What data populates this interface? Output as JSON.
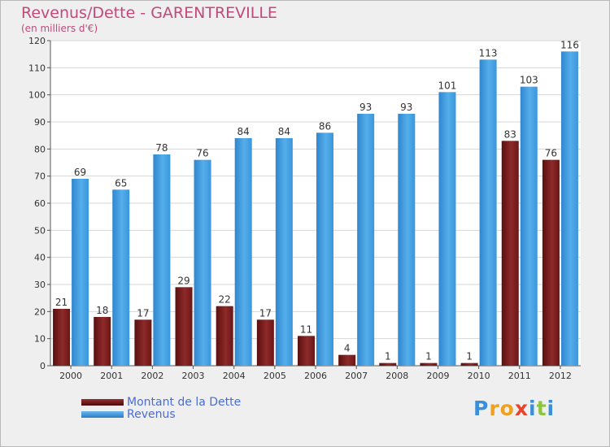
{
  "chart_data": {
    "type": "bar",
    "title": "Revenus/Dette - GARENTREVILLE",
    "subtitle": "(en milliers d'€)",
    "categories": [
      "2000",
      "2001",
      "2002",
      "2003",
      "2004",
      "2005",
      "2006",
      "2007",
      "2008",
      "2009",
      "2010",
      "2011",
      "2012"
    ],
    "series": [
      {
        "name": "Montant de la Dette",
        "color": "#7a1c1c",
        "values": [
          21,
          18,
          17,
          29,
          22,
          17,
          11,
          4,
          1,
          1,
          1,
          83,
          76
        ]
      },
      {
        "name": "Revenus",
        "color": "#3a96dc",
        "values": [
          69,
          65,
          78,
          76,
          84,
          84,
          86,
          93,
          93,
          101,
          113,
          103,
          116
        ]
      }
    ],
    "ylim": [
      0,
      120
    ],
    "yticks": [
      0,
      10,
      20,
      30,
      40,
      50,
      60,
      70,
      80,
      90,
      100,
      110,
      120
    ],
    "grid": true,
    "legend_position": "bottom-left"
  },
  "logo": {
    "letters": [
      {
        "ch": "P",
        "color": "#3b8fd8"
      },
      {
        "ch": "r",
        "color": "#f0a020"
      },
      {
        "ch": "o",
        "color": "#f0a020"
      },
      {
        "ch": "x",
        "color": "#e8432c"
      },
      {
        "ch": "i",
        "color": "#3b8fd8"
      },
      {
        "ch": "t",
        "color": "#8cc63f"
      },
      {
        "ch": "i",
        "color": "#3b8fd8"
      }
    ]
  }
}
